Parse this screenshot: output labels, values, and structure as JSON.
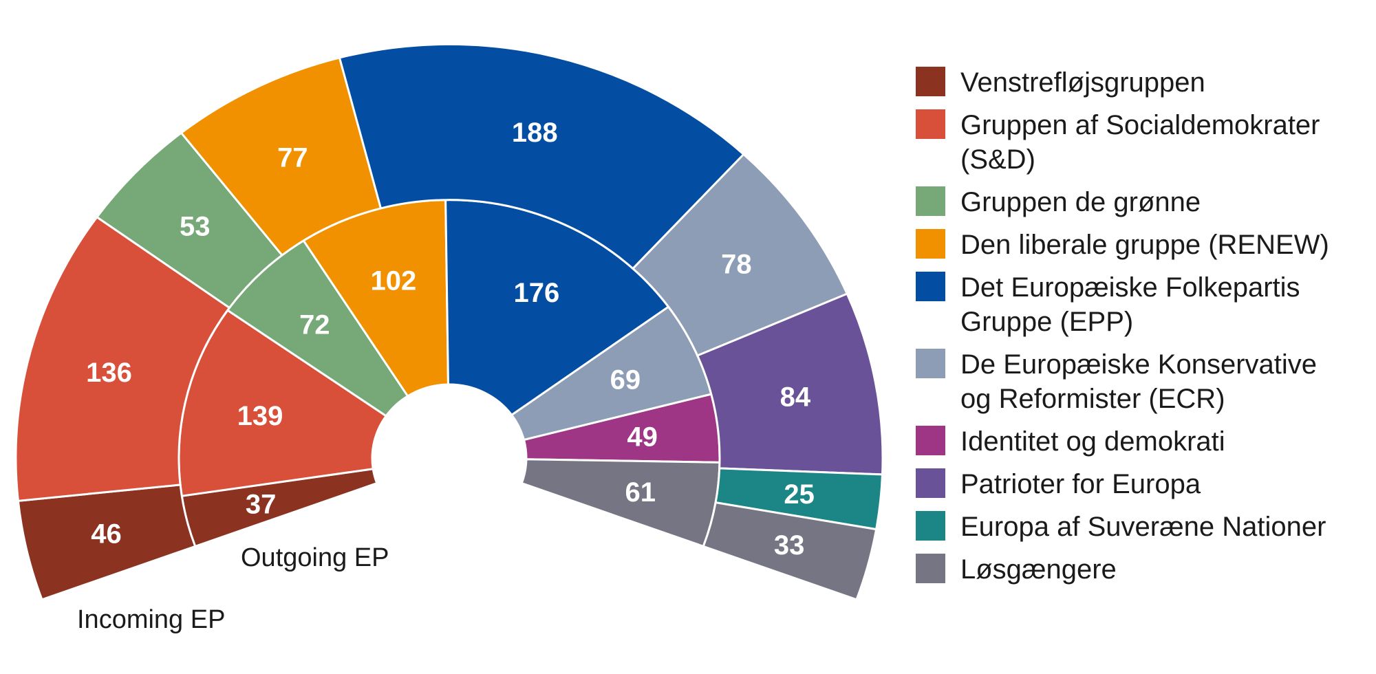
{
  "chart_data": {
    "type": "pie",
    "subtype": "double semicircle donut (parliament seats)",
    "groups": [
      {
        "key": "left",
        "name": "Venstrefløjsgruppen",
        "color": "#8B3320"
      },
      {
        "key": "sd",
        "name": "Gruppen af Socialdemokrater (S&D)",
        "color": "#D9503A"
      },
      {
        "key": "greens",
        "name": "Gruppen de grønne",
        "color": "#76A878"
      },
      {
        "key": "renew",
        "name": "Den liberale gruppe (RENEW)",
        "color": "#F29100"
      },
      {
        "key": "epp",
        "name": "Det Europæiske Folkepartis Gruppe (EPP)",
        "color": "#034EA2"
      },
      {
        "key": "ecr",
        "name": "De Europæiske Konservative og Reformister (ECR)",
        "color": "#8C9DB5"
      },
      {
        "key": "id",
        "name": "Identitet og demokrati",
        "color": "#9E3585"
      },
      {
        "key": "pfe",
        "name": "Patrioter for Europa",
        "color": "#6A5299"
      },
      {
        "key": "esn",
        "name": "Europa af Suveræne Nationer",
        "color": "#1C8585"
      },
      {
        "key": "ni",
        "name": "Løsgængere",
        "color": "#767584"
      }
    ],
    "series": [
      {
        "name": "Outgoing EP",
        "ring": "inner",
        "slices": [
          {
            "group": "left",
            "value": 37
          },
          {
            "group": "sd",
            "value": 139
          },
          {
            "group": "greens",
            "value": 72
          },
          {
            "group": "renew",
            "value": 102
          },
          {
            "group": "epp",
            "value": 176
          },
          {
            "group": "ecr",
            "value": 69
          },
          {
            "group": "id",
            "value": 49
          },
          {
            "group": "ni",
            "value": 61
          }
        ]
      },
      {
        "name": "Incoming EP",
        "ring": "outer",
        "slices": [
          {
            "group": "left",
            "value": 46
          },
          {
            "group": "sd",
            "value": 136
          },
          {
            "group": "greens",
            "value": 53
          },
          {
            "group": "renew",
            "value": 77
          },
          {
            "group": "epp",
            "value": 188
          },
          {
            "group": "ecr",
            "value": 78
          },
          {
            "group": "pfe",
            "value": 84
          },
          {
            "group": "esn",
            "value": 25
          },
          {
            "group": "ni",
            "value": 33
          }
        ]
      }
    ],
    "legend_placement": "right"
  },
  "labels": {
    "outgoing": "Outgoing EP",
    "incoming": "Incoming EP"
  }
}
